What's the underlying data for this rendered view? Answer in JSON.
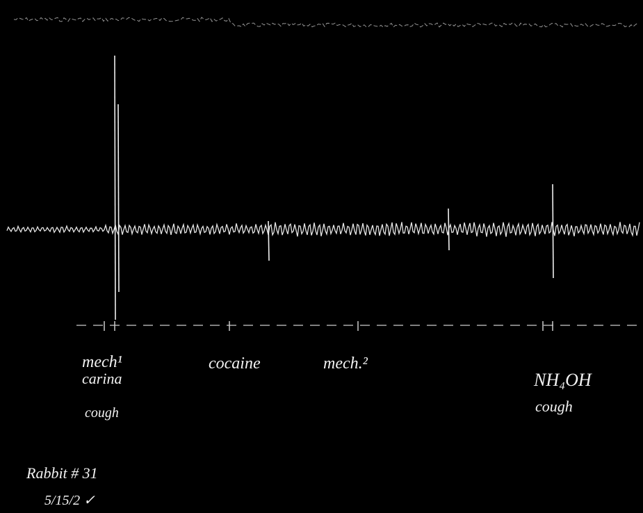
{
  "annotations": {
    "event_1": {
      "lines": [
        "mech¹",
        "carina",
        "cough"
      ]
    },
    "event_2": {
      "lines": [
        "cocaine"
      ]
    },
    "event_3": {
      "lines": [
        "mech.²"
      ]
    },
    "event_4": {
      "lines": [
        "NH₄OH",
        "cough"
      ]
    },
    "footer": {
      "lines": [
        "Rabbit # 31",
        "5/15/2 ✓"
      ]
    }
  }
}
